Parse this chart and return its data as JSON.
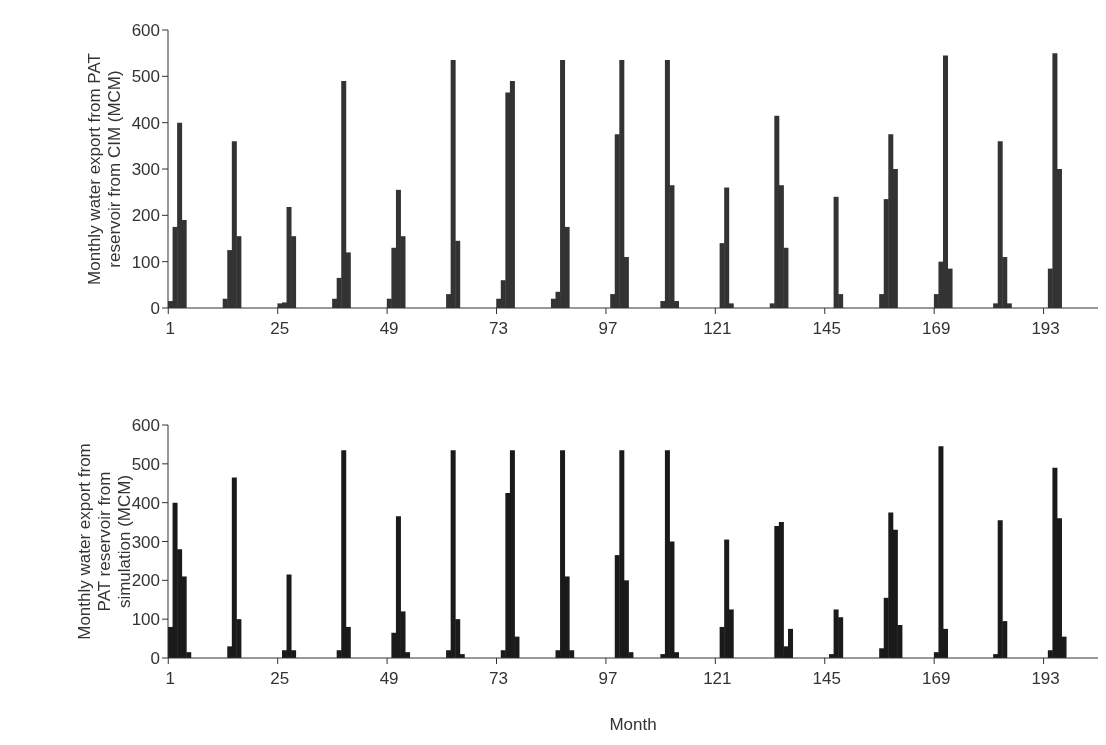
{
  "chart_data": [
    {
      "type": "bar",
      "ylabel": "Monthly water export from PAT reservoir from CIM (MCM)",
      "color": "#333333",
      "ylim": [
        0,
        600
      ],
      "yticks": [
        0,
        100,
        200,
        300,
        400,
        500,
        600
      ],
      "categories": [
        "1",
        null,
        null,
        null,
        null,
        null,
        null,
        null,
        null,
        null,
        null,
        null,
        null,
        null,
        null,
        null,
        null,
        null,
        null,
        null,
        null,
        null,
        null,
        null,
        "25",
        null,
        null,
        null,
        null,
        null,
        null,
        null,
        null,
        null,
        null,
        null,
        null,
        null,
        null,
        null,
        null,
        null,
        null,
        null,
        null,
        null,
        null,
        null,
        "49",
        null,
        null,
        null,
        null,
        null,
        null,
        null,
        null,
        null,
        null,
        null,
        null,
        null,
        null,
        null,
        null,
        null,
        null,
        null,
        null,
        null,
        null,
        null,
        "73",
        null,
        null,
        null,
        null,
        null,
        null,
        null,
        null,
        null,
        null,
        null,
        null,
        null,
        null,
        null,
        null,
        null,
        null,
        null,
        null,
        null,
        null,
        null,
        "97",
        null,
        null,
        null,
        null,
        null,
        null,
        null,
        null,
        null,
        null,
        null,
        null,
        null,
        null,
        null,
        null,
        null,
        null,
        null,
        null,
        null,
        null,
        null,
        "121",
        null,
        null,
        null,
        null,
        null,
        null,
        null,
        null,
        null,
        null,
        null,
        null,
        null,
        null,
        null,
        null,
        null,
        null,
        null,
        null,
        null,
        null,
        null,
        "145",
        null,
        null,
        null,
        null,
        null,
        null,
        null,
        null,
        null,
        null,
        null,
        null,
        null,
        null,
        null,
        null,
        null,
        null,
        null,
        null,
        null,
        null,
        null,
        "169",
        null,
        null,
        null,
        null,
        null,
        null,
        null,
        null,
        null,
        null,
        null,
        null,
        null,
        null,
        null,
        null,
        null,
        null,
        null,
        null,
        null,
        null,
        null,
        "193",
        null,
        null,
        null,
        null,
        null,
        null,
        null,
        null,
        null,
        null,
        null
      ],
      "values": [
        15,
        175,
        400,
        190,
        0,
        0,
        0,
        0,
        0,
        0,
        0,
        0,
        20,
        125,
        360,
        155,
        0,
        0,
        0,
        0,
        0,
        0,
        0,
        0,
        10,
        12,
        218,
        155,
        0,
        0,
        0,
        0,
        0,
        0,
        0,
        0,
        20,
        65,
        490,
        120,
        0,
        0,
        0,
        0,
        0,
        0,
        0,
        0,
        20,
        130,
        255,
        155,
        0,
        0,
        0,
        0,
        0,
        0,
        0,
        0,
        0,
        30,
        535,
        145,
        0,
        0,
        0,
        0,
        0,
        0,
        0,
        0,
        20,
        60,
        465,
        490,
        0,
        0,
        0,
        0,
        0,
        0,
        0,
        0,
        20,
        35,
        535,
        175,
        0,
        0,
        0,
        0,
        0,
        0,
        0,
        0,
        0,
        30,
        375,
        535,
        110,
        0,
        0,
        0,
        0,
        0,
        0,
        0,
        15,
        535,
        265,
        15,
        0,
        0,
        0,
        0,
        0,
        0,
        0,
        0,
        0,
        140,
        260,
        10,
        0,
        0,
        0,
        0,
        0,
        0,
        0,
        0,
        10,
        415,
        265,
        130,
        0,
        0,
        0,
        0,
        0,
        0,
        0,
        0,
        0,
        0,
        240,
        30,
        0,
        0,
        0,
        0,
        0,
        0,
        0,
        0,
        30,
        235,
        375,
        300,
        0,
        0,
        0,
        0,
        0,
        0,
        0,
        0,
        30,
        100,
        545,
        85,
        0,
        0,
        0,
        0,
        0,
        0,
        0,
        0,
        0,
        10,
        360,
        110,
        10,
        0,
        0,
        0,
        0,
        0,
        0,
        0,
        0,
        85,
        550,
        300,
        0,
        0,
        0,
        0,
        0,
        0,
        0,
        0
      ]
    },
    {
      "type": "bar",
      "ylabel": "Monthly water export from PAT reservoir from simulation (MCM)",
      "xlabel": "Month",
      "color": "#1a1a1a",
      "ylim": [
        0,
        600
      ],
      "yticks": [
        0,
        100,
        200,
        300,
        400,
        500,
        600
      ],
      "categories": [
        "1",
        null,
        null,
        null,
        null,
        null,
        null,
        null,
        null,
        null,
        null,
        null,
        null,
        null,
        null,
        null,
        null,
        null,
        null,
        null,
        null,
        null,
        null,
        null,
        "25",
        null,
        null,
        null,
        null,
        null,
        null,
        null,
        null,
        null,
        null,
        null,
        null,
        null,
        null,
        null,
        null,
        null,
        null,
        null,
        null,
        null,
        null,
        null,
        "49",
        null,
        null,
        null,
        null,
        null,
        null,
        null,
        null,
        null,
        null,
        null,
        null,
        null,
        null,
        null,
        null,
        null,
        null,
        null,
        null,
        null,
        null,
        null,
        "73",
        null,
        null,
        null,
        null,
        null,
        null,
        null,
        null,
        null,
        null,
        null,
        null,
        null,
        null,
        null,
        null,
        null,
        null,
        null,
        null,
        null,
        null,
        null,
        "97",
        null,
        null,
        null,
        null,
        null,
        null,
        null,
        null,
        null,
        null,
        null,
        null,
        null,
        null,
        null,
        null,
        null,
        null,
        null,
        null,
        null,
        null,
        null,
        "121",
        null,
        null,
        null,
        null,
        null,
        null,
        null,
        null,
        null,
        null,
        null,
        null,
        null,
        null,
        null,
        null,
        null,
        null,
        null,
        null,
        null,
        null,
        null,
        "145",
        null,
        null,
        null,
        null,
        null,
        null,
        null,
        null,
        null,
        null,
        null,
        null,
        null,
        null,
        null,
        null,
        null,
        null,
        null,
        null,
        null,
        null,
        null,
        "169",
        null,
        null,
        null,
        null,
        null,
        null,
        null,
        null,
        null,
        null,
        null,
        null,
        null,
        null,
        null,
        null,
        null,
        null,
        null,
        null,
        null,
        null,
        null,
        "193",
        null,
        null,
        null,
        null,
        null,
        null,
        null,
        null,
        null,
        null,
        null
      ],
      "values": [
        80,
        400,
        280,
        210,
        15,
        0,
        0,
        0,
        0,
        0,
        0,
        0,
        0,
        30,
        465,
        100,
        0,
        0,
        0,
        0,
        0,
        0,
        0,
        0,
        0,
        20,
        215,
        20,
        0,
        0,
        0,
        0,
        0,
        0,
        0,
        0,
        0,
        20,
        535,
        80,
        0,
        0,
        0,
        0,
        0,
        0,
        0,
        0,
        0,
        65,
        365,
        120,
        15,
        0,
        0,
        0,
        0,
        0,
        0,
        0,
        0,
        20,
        535,
        100,
        10,
        0,
        0,
        0,
        0,
        0,
        0,
        0,
        0,
        20,
        425,
        535,
        55,
        0,
        0,
        0,
        0,
        0,
        0,
        0,
        0,
        20,
        535,
        210,
        20,
        0,
        0,
        0,
        0,
        0,
        0,
        0,
        0,
        0,
        265,
        535,
        200,
        15,
        0,
        0,
        0,
        0,
        0,
        0,
        10,
        535,
        300,
        15,
        0,
        0,
        0,
        0,
        0,
        0,
        0,
        0,
        0,
        80,
        305,
        125,
        0,
        0,
        0,
        0,
        0,
        0,
        0,
        0,
        0,
        340,
        350,
        30,
        75,
        0,
        0,
        0,
        0,
        0,
        0,
        0,
        0,
        10,
        125,
        105,
        0,
        0,
        0,
        0,
        0,
        0,
        0,
        0,
        25,
        155,
        375,
        330,
        85,
        0,
        0,
        0,
        0,
        0,
        0,
        0,
        15,
        545,
        75,
        0,
        0,
        0,
        0,
        0,
        0,
        0,
        0,
        0,
        0,
        10,
        355,
        95,
        0,
        0,
        0,
        0,
        0,
        0,
        0,
        0,
        0,
        20,
        490,
        360,
        55,
        0,
        0,
        0,
        0,
        0,
        0,
        0
      ]
    }
  ]
}
